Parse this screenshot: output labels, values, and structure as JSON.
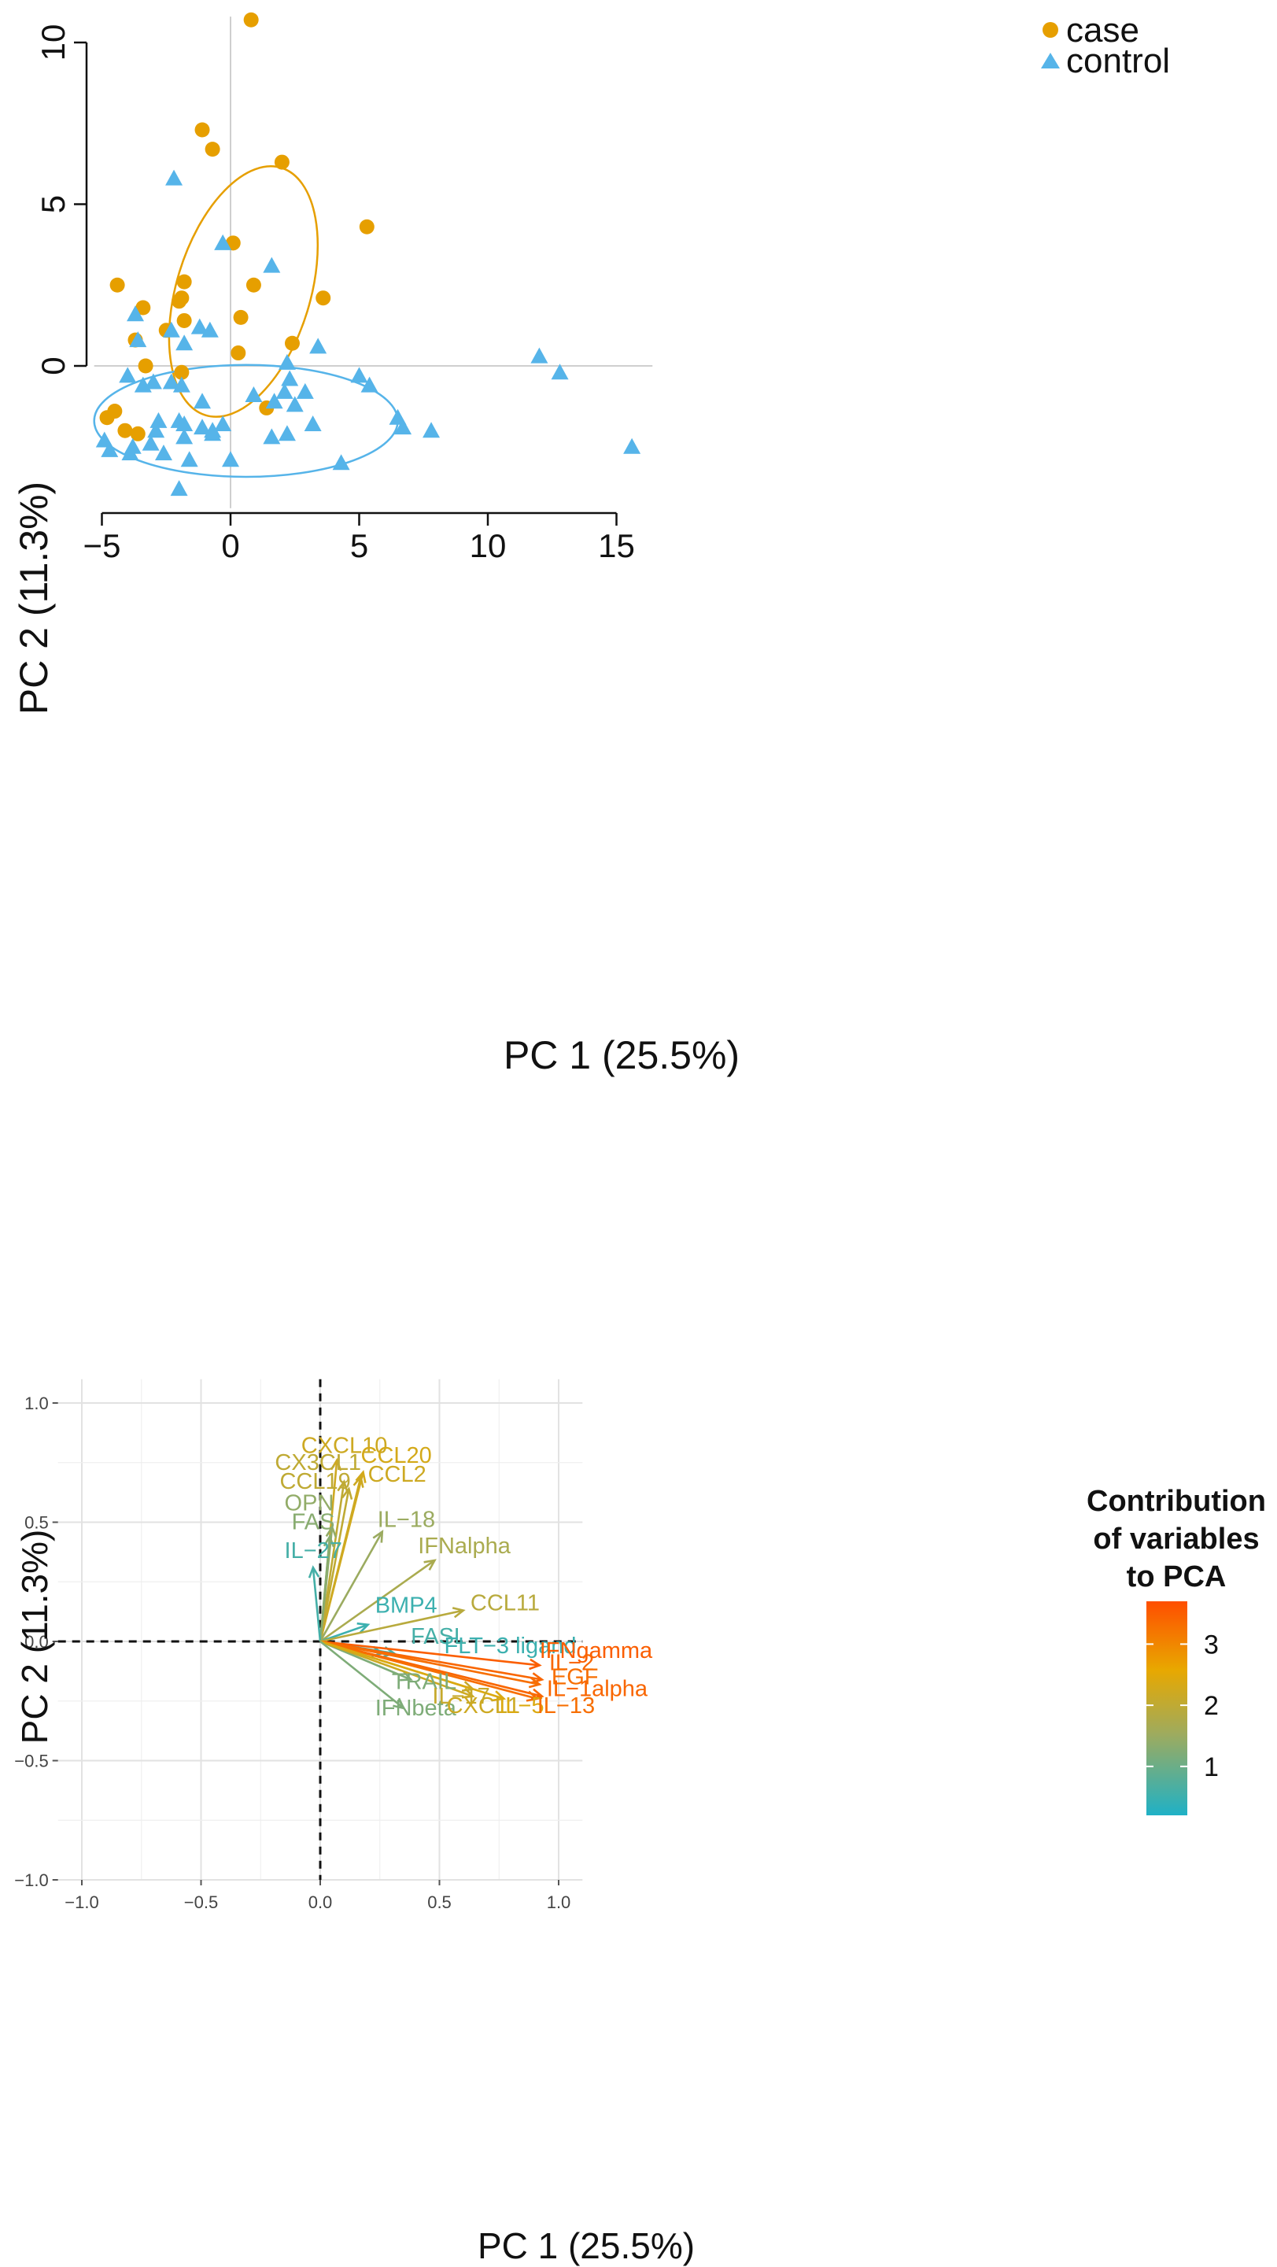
{
  "chart_data": [
    {
      "type": "scatter",
      "title": "",
      "xlabel": "PC 1 (25.5%)",
      "ylabel": "PC 2 (11.3%)",
      "xlim": [
        -5,
        16
      ],
      "ylim": [
        -4.5,
        11
      ],
      "xticks": [
        "-5",
        "0",
        "5",
        "10",
        "15"
      ],
      "yticks": [
        "0",
        "5",
        "10"
      ],
      "legend": [
        {
          "name": "case",
          "color": "#E69F00",
          "marker": "circle"
        },
        {
          "name": "control",
          "color": "#56B4E9",
          "marker": "triangle"
        }
      ],
      "series": [
        {
          "name": "case",
          "color": "#E69F00",
          "points": [
            [
              0.8,
              10.7
            ],
            [
              -1.1,
              7.3
            ],
            [
              -0.7,
              6.7
            ],
            [
              2.0,
              6.3
            ],
            [
              5.3,
              4.3
            ],
            [
              0.1,
              3.8
            ],
            [
              -1.8,
              2.6
            ],
            [
              0.9,
              2.5
            ],
            [
              -4.4,
              2.5
            ],
            [
              -1.9,
              2.1
            ],
            [
              -2.0,
              2.0
            ],
            [
              3.6,
              2.1
            ],
            [
              -3.4,
              1.8
            ],
            [
              -1.8,
              1.4
            ],
            [
              0.4,
              1.5
            ],
            [
              -2.5,
              1.1
            ],
            [
              -3.7,
              0.8
            ],
            [
              0.3,
              0.4
            ],
            [
              2.4,
              0.7
            ],
            [
              -3.3,
              0.0
            ],
            [
              -1.9,
              -0.2
            ],
            [
              1.4,
              -1.3
            ],
            [
              -4.5,
              -1.4
            ],
            [
              -4.8,
              -1.6
            ],
            [
              -4.1,
              -2.0
            ],
            [
              -3.6,
              -2.1
            ]
          ]
        },
        {
          "name": "control",
          "color": "#56B4E9",
          "points": [
            [
              -2.2,
              5.8
            ],
            [
              -0.3,
              3.8
            ],
            [
              1.6,
              3.1
            ],
            [
              -3.7,
              1.6
            ],
            [
              -1.2,
              1.2
            ],
            [
              -0.8,
              1.1
            ],
            [
              -2.3,
              1.1
            ],
            [
              -1.8,
              0.7
            ],
            [
              -3.6,
              0.8
            ],
            [
              3.4,
              0.6
            ],
            [
              2.2,
              0.1
            ],
            [
              5.0,
              -0.3
            ],
            [
              5.4,
              -0.6
            ],
            [
              2.3,
              -0.4
            ],
            [
              2.1,
              -0.8
            ],
            [
              2.9,
              -0.8
            ],
            [
              0.9,
              -0.9
            ],
            [
              1.7,
              -1.1
            ],
            [
              2.5,
              -1.2
            ],
            [
              -4.0,
              -0.3
            ],
            [
              -3.4,
              -0.6
            ],
            [
              -3.0,
              -0.5
            ],
            [
              -2.3,
              -0.5
            ],
            [
              -1.9,
              -0.6
            ],
            [
              -1.1,
              -1.1
            ],
            [
              -1.8,
              -1.8
            ],
            [
              -2.0,
              -1.7
            ],
            [
              -2.8,
              -1.7
            ],
            [
              -2.9,
              -2.0
            ],
            [
              -1.1,
              -1.9
            ],
            [
              -0.3,
              -1.8
            ],
            [
              -0.7,
              -2.0
            ],
            [
              -0.7,
              -2.1
            ],
            [
              -1.8,
              -2.2
            ],
            [
              -2.6,
              -2.7
            ],
            [
              -3.1,
              -2.4
            ],
            [
              -3.8,
              -2.5
            ],
            [
              -3.9,
              -2.7
            ],
            [
              -4.7,
              -2.6
            ],
            [
              -4.9,
              -2.3
            ],
            [
              -1.6,
              -2.9
            ],
            [
              -2.0,
              -3.8
            ],
            [
              0.0,
              -2.9
            ],
            [
              1.6,
              -2.2
            ],
            [
              2.2,
              -2.1
            ],
            [
              3.2,
              -1.8
            ],
            [
              6.5,
              -1.6
            ],
            [
              6.7,
              -1.9
            ],
            [
              7.8,
              -2.0
            ],
            [
              4.3,
              -3.0
            ],
            [
              12.0,
              0.3
            ],
            [
              12.8,
              -0.2
            ],
            [
              15.6,
              -2.5
            ]
          ]
        }
      ],
      "ellipses": [
        {
          "series": "case",
          "color": "#E69F00",
          "center": [
            0.5,
            2.3
          ],
          "rx": 2.6,
          "ry": 4.0,
          "rotation_deg": 17
        },
        {
          "series": "control",
          "color": "#56B4E9",
          "center": [
            0.6,
            -1.7
          ],
          "rx": 5.9,
          "ry": 1.73,
          "rotation_deg": 0
        }
      ]
    },
    {
      "type": "biplot",
      "title": "",
      "xlabel": "PC 1 (25.5%)",
      "ylabel": "PC 2 (11.3%)",
      "xlim": [
        -1.1,
        1.1
      ],
      "ylim": [
        -1.0,
        1.0
      ],
      "xticks": [
        "-1.0",
        "-0.5",
        "0.0",
        "0.5",
        "1.0"
      ],
      "yticks": [
        "-1.0",
        "-0.5",
        "0.0",
        "0.5",
        "1.0"
      ],
      "legend_title": "Contribution of variables to PCA",
      "legend_title_lines": [
        "Contribution",
        "of variables",
        "to PCA"
      ],
      "legend_ticks": [
        "3",
        "2",
        "1"
      ],
      "legend_range": [
        0.2,
        3.7
      ],
      "legend_colors": [
        "#1FB1C6",
        "#9EAB5E",
        "#E8A800",
        "#FF4E00"
      ],
      "vectors": [
        {
          "name": "CXCL10",
          "x": 0.07,
          "y": 0.76,
          "contrib": 2.2
        },
        {
          "name": "CX3CL1",
          "x": 0.1,
          "y": 0.67,
          "contrib": 2.0
        },
        {
          "name": "CCL20",
          "x": 0.18,
          "y": 0.71,
          "contrib": 2.3
        },
        {
          "name": "CCL2",
          "x": 0.17,
          "y": 0.69,
          "contrib": 2.2
        },
        {
          "name": "CCL19",
          "x": 0.12,
          "y": 0.64,
          "contrib": 2.0
        },
        {
          "name": "OPN",
          "x": 0.05,
          "y": 0.48,
          "contrib": 1.4
        },
        {
          "name": "FAS",
          "x": 0.04,
          "y": 0.44,
          "contrib": 1.3
        },
        {
          "name": "IL-18",
          "x": 0.26,
          "y": 0.46,
          "contrib": 1.5
        },
        {
          "name": "IL-27",
          "x": -0.03,
          "y": 0.31,
          "contrib": 0.6
        },
        {
          "name": "IFNalpha",
          "x": 0.48,
          "y": 0.34,
          "contrib": 1.7
        },
        {
          "name": "BMP4",
          "x": 0.2,
          "y": 0.07,
          "contrib": 0.5
        },
        {
          "name": "CCL11",
          "x": 0.6,
          "y": 0.13,
          "contrib": 1.9
        },
        {
          "name": "FASL",
          "x": 0.31,
          "y": -0.05,
          "contrib": 0.6
        },
        {
          "name": "FLT-3 ligand",
          "x": 0.26,
          "y": -0.05,
          "contrib": 0.5
        },
        {
          "name": "IFNgamma",
          "x": 0.92,
          "y": -0.1,
          "contrib": 3.5
        },
        {
          "name": "IL-2",
          "x": 0.93,
          "y": -0.16,
          "contrib": 3.4
        },
        {
          "name": "EGF",
          "x": 0.92,
          "y": -0.18,
          "contrib": 3.3
        },
        {
          "name": "IL-1alpha",
          "x": 0.93,
          "y": -0.23,
          "contrib": 3.4
        },
        {
          "name": "IL-13",
          "x": 0.91,
          "y": -0.24,
          "contrib": 3.3
        },
        {
          "name": "TRAIL",
          "x": 0.38,
          "y": -0.16,
          "contrib": 1.2
        },
        {
          "name": "IL-17",
          "x": 0.64,
          "y": -0.2,
          "contrib": 2.1
        },
        {
          "name": "CXCL1",
          "x": 0.64,
          "y": -0.23,
          "contrib": 2.2
        },
        {
          "name": "IL-5",
          "x": 0.77,
          "y": -0.24,
          "contrib": 2.4
        },
        {
          "name": "IFNbeta",
          "x": 0.35,
          "y": -0.28,
          "contrib": 1.2
        }
      ],
      "labels": [
        {
          "text": "CXCL10",
          "x": -0.08,
          "y": 0.79,
          "anchor": "start"
        },
        {
          "text": "CCL20",
          "x": 0.17,
          "y": 0.75,
          "anchor": "start"
        },
        {
          "text": "CX3CL1",
          "x": -0.19,
          "y": 0.72,
          "anchor": "start"
        },
        {
          "text": "CCL2",
          "x": 0.2,
          "y": 0.67,
          "anchor": "start"
        },
        {
          "text": "CCL19",
          "x": -0.17,
          "y": 0.64,
          "anchor": "start"
        },
        {
          "text": "OPN",
          "x": -0.15,
          "y": 0.55,
          "anchor": "start"
        },
        {
          "text": "IL-18",
          "x": 0.24,
          "y": 0.48,
          "anchor": "start"
        },
        {
          "text": "FAS",
          "x": -0.12,
          "y": 0.47,
          "anchor": "start"
        },
        {
          "text": "IFNalpha",
          "x": 0.41,
          "y": 0.37,
          "anchor": "start"
        },
        {
          "text": "IL-27",
          "x": -0.15,
          "y": 0.35,
          "anchor": "start"
        },
        {
          "text": "BMP4",
          "x": 0.23,
          "y": 0.12,
          "anchor": "start"
        },
        {
          "text": "CCL11",
          "x": 0.63,
          "y": 0.13,
          "anchor": "start"
        },
        {
          "text": "FASL",
          "x": 0.38,
          "y": -0.01,
          "anchor": "start"
        },
        {
          "text": "FLT-3 ligand",
          "x": 0.52,
          "y": -0.05,
          "anchor": "start"
        },
        {
          "text": "IFNgamma",
          "x": 0.92,
          "y": -0.07,
          "anchor": "start"
        },
        {
          "text": "IL-2",
          "x": 0.96,
          "y": -0.12,
          "anchor": "start"
        },
        {
          "text": "EGF",
          "x": 0.97,
          "y": -0.18,
          "anchor": "start"
        },
        {
          "text": "TRAIL",
          "x": 0.3,
          "y": -0.2,
          "anchor": "start"
        },
        {
          "text": "IL-1alpha",
          "x": 0.95,
          "y": -0.23,
          "anchor": "start"
        },
        {
          "text": "IL-17",
          "x": 0.47,
          "y": -0.26,
          "anchor": "start"
        },
        {
          "text": "IFNbeta",
          "x": 0.23,
          "y": -0.31,
          "anchor": "start"
        },
        {
          "text": "CXCL1",
          "x": 0.53,
          "y": -0.3,
          "anchor": "start"
        },
        {
          "text": "IL-5",
          "x": 0.75,
          "y": -0.3,
          "anchor": "start"
        },
        {
          "text": "IL-13",
          "x": 0.91,
          "y": -0.3,
          "anchor": "start"
        }
      ]
    }
  ]
}
